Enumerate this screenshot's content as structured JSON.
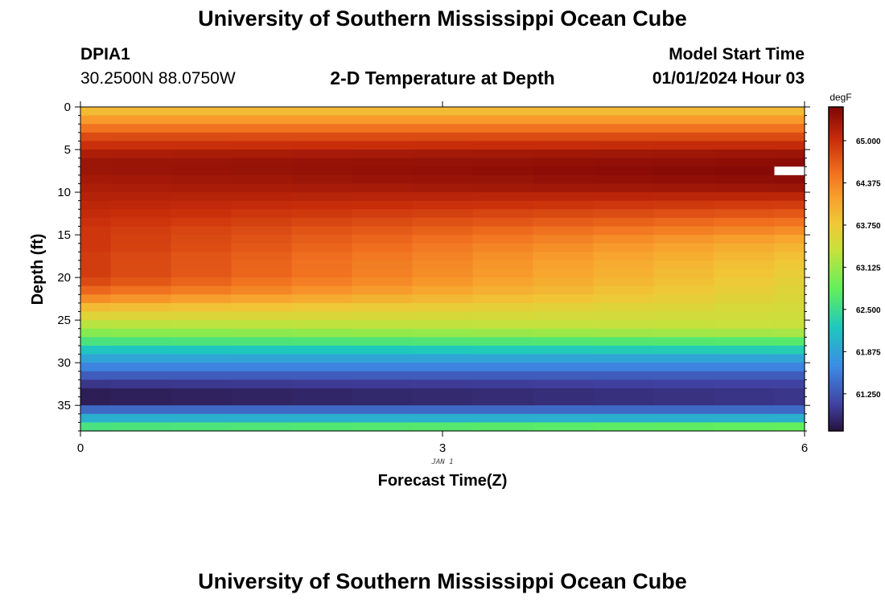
{
  "header": {
    "title": "University of Southern Mississippi Ocean Cube",
    "station_id": "DPIA1",
    "coords": "30.2500N  88.0750W",
    "subtitle": "2-D Temperature at Depth",
    "start_label": "Model Start Time",
    "start_value": "01/01/2024 Hour 03"
  },
  "footer": {
    "title": "University of Southern Mississippi Ocean Cube"
  },
  "chart_data": {
    "type": "heatmap",
    "title": "2-D Temperature at Depth",
    "xlabel": "Forecast Time(Z)",
    "ylabel": "Depth (ft)",
    "x_date_label": "JAN 1",
    "xlim": [
      0,
      6
    ],
    "ylim": [
      38,
      0
    ],
    "x_ticks": [
      "0",
      "3",
      "6"
    ],
    "y_ticks": [
      "0",
      "5",
      "10",
      "15",
      "20",
      "25",
      "30",
      "35"
    ],
    "colorbar": {
      "unit": "degF",
      "min": 60.7,
      "max": 65.5,
      "tick_values": [
        61.25,
        61.875,
        62.5,
        63.125,
        63.75,
        64.375,
        65.0
      ],
      "tick_labels": [
        "61.250",
        "61.875",
        "62.500",
        "63.125",
        "63.750",
        "64.375",
        "65.000"
      ]
    },
    "time_columns": [
      0,
      0.5,
      1,
      1.5,
      2,
      2.5,
      3,
      3.5,
      4,
      4.5,
      5,
      5.5,
      6
    ],
    "depth_levels": [
      0.5,
      1.5,
      2.5,
      3.5,
      4.5,
      5.5,
      6.5,
      7.5,
      8.5,
      9.5,
      10.5,
      11.5,
      12.5,
      13.5,
      14.5,
      15.5,
      16.5,
      17.5,
      18.5,
      19.5,
      20.5,
      21.5,
      22.5,
      23.5,
      24.5,
      25.5,
      26.5,
      27.5,
      28.5,
      29.5,
      30.5,
      31.5,
      32.5,
      33.5,
      34.5,
      35.5,
      36.5,
      37.5
    ],
    "temperature_start": [
      63.9,
      64.2,
      64.5,
      64.8,
      65.0,
      65.2,
      65.3,
      65.3,
      65.25,
      65.2,
      65.15,
      65.1,
      65.05,
      65.0,
      64.95,
      64.95,
      64.95,
      64.9,
      64.9,
      64.9,
      64.8,
      64.6,
      64.3,
      63.9,
      63.6,
      63.3,
      63.0,
      62.6,
      62.2,
      61.9,
      61.6,
      61.3,
      61.0,
      60.8,
      60.8,
      61.4,
      62.0,
      62.6
    ],
    "temperature_end": [
      63.9,
      64.2,
      64.5,
      64.8,
      65.05,
      65.3,
      65.4,
      65.45,
      65.4,
      65.3,
      65.1,
      64.9,
      64.7,
      64.5,
      64.3,
      64.1,
      63.95,
      63.85,
      63.75,
      63.7,
      63.65,
      63.6,
      63.55,
      63.5,
      63.45,
      63.4,
      63.2,
      62.7,
      62.3,
      61.9,
      61.6,
      61.3,
      61.1,
      61.0,
      61.0,
      61.4,
      62.0,
      62.8
    ],
    "missing_cell": {
      "time": 6,
      "depth": 7.5
    }
  }
}
